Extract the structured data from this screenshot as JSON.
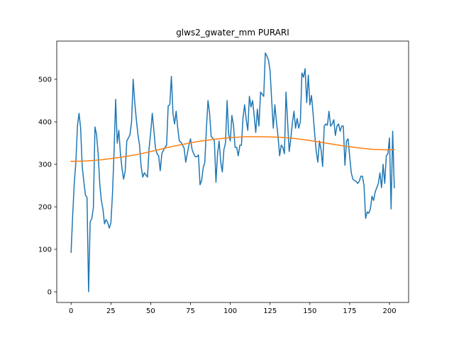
{
  "chart_data": {
    "type": "line",
    "title": "glws2_gwater_mm PURARI",
    "xlabel": "",
    "ylabel": "",
    "xlim": [
      -9,
      212
    ],
    "ylim": [
      -25,
      590
    ],
    "xticks": [
      0,
      25,
      50,
      75,
      100,
      125,
      150,
      175,
      200
    ],
    "yticks": [
      0,
      100,
      200,
      300,
      400,
      500
    ],
    "grid": false,
    "series": [
      {
        "color": "#1f77b4",
        "x": [
          0,
          1,
          2,
          3,
          4,
          5,
          6,
          7,
          8,
          9,
          10,
          11,
          12,
          13,
          14,
          15,
          16,
          17,
          18,
          19,
          20,
          21,
          22,
          23,
          24,
          25,
          26,
          27,
          28,
          29,
          30,
          31,
          32,
          33,
          34,
          35,
          36,
          37,
          38,
          39,
          40,
          41,
          42,
          43,
          44,
          45,
          46,
          47,
          48,
          49,
          50,
          51,
          52,
          53,
          54,
          55,
          56,
          57,
          58,
          59,
          60,
          61,
          62,
          63,
          64,
          65,
          66,
          67,
          68,
          69,
          70,
          71,
          72,
          73,
          74,
          75,
          76,
          77,
          78,
          79,
          80,
          81,
          82,
          83,
          84,
          85,
          86,
          87,
          88,
          89,
          90,
          91,
          92,
          93,
          94,
          95,
          96,
          97,
          98,
          99,
          100,
          101,
          102,
          103,
          104,
          105,
          106,
          107,
          108,
          109,
          110,
          111,
          112,
          113,
          114,
          115,
          116,
          117,
          118,
          119,
          120,
          121,
          122,
          123,
          124,
          125,
          126,
          127,
          128,
          129,
          130,
          131,
          132,
          133,
          134,
          135,
          136,
          137,
          138,
          139,
          140,
          141,
          142,
          143,
          144,
          145,
          146,
          147,
          148,
          149,
          150,
          151,
          152,
          153,
          154,
          155,
          156,
          157,
          158,
          159,
          160,
          161,
          162,
          163,
          164,
          165,
          166,
          167,
          168,
          169,
          170,
          171,
          172,
          173,
          174,
          175,
          176,
          177,
          178,
          179,
          180,
          181,
          182,
          183,
          184,
          185,
          186,
          187,
          188,
          189,
          190,
          191,
          192,
          193,
          194,
          195,
          196,
          197,
          198,
          199,
          200,
          201,
          202,
          203
        ],
        "values": [
          93,
          180,
          255,
          305,
          390,
          420,
          385,
          295,
          260,
          228,
          222,
          0,
          165,
          172,
          198,
          388,
          370,
          325,
          255,
          215,
          195,
          160,
          170,
          163,
          150,
          162,
          230,
          330,
          453,
          350,
          380,
          325,
          290,
          265,
          285,
          355,
          362,
          370,
          400,
          500,
          445,
          405,
          370,
          345,
          295,
          270,
          280,
          275,
          270,
          338,
          375,
          420,
          380,
          338,
          325,
          320,
          285,
          325,
          333,
          340,
          345,
          438,
          440,
          507,
          420,
          395,
          425,
          385,
          355,
          352,
          345,
          338,
          305,
          325,
          345,
          360,
          335,
          325,
          318,
          318,
          322,
          252,
          262,
          292,
          305,
          385,
          450,
          420,
          365,
          362,
          355,
          258,
          325,
          355,
          305,
          282,
          335,
          350,
          450,
          370,
          355,
          415,
          392,
          340,
          340,
          320,
          345,
          345,
          410,
          440,
          405,
          380,
          460,
          435,
          450,
          415,
          375,
          430,
          390,
          470,
          465,
          460,
          562,
          555,
          545,
          520,
          450,
          385,
          440,
          400,
          365,
          320,
          345,
          340,
          325,
          470,
          400,
          330,
          360,
          398,
          425,
          385,
          408,
          385,
          400,
          515,
          505,
          525,
          445,
          510,
          440,
          462,
          420,
          372,
          330,
          305,
          355,
          335,
          295,
          390,
          395,
          392,
          425,
          390,
          395,
          405,
          368,
          390,
          395,
          378,
          390,
          390,
          298,
          355,
          360,
          318,
          280,
          265,
          262,
          260,
          255,
          260,
          272,
          272,
          250,
          173,
          188,
          185,
          195,
          225,
          215,
          235,
          245,
          255,
          280,
          245,
          300,
          255,
          320,
          325,
          362,
          195,
          378,
          245
        ]
      },
      {
        "color": "#ff7f0e",
        "x": [
          0,
          10,
          20,
          30,
          40,
          50,
          60,
          70,
          80,
          90,
          100,
          110,
          120,
          130,
          140,
          150,
          160,
          170,
          180,
          190,
          200,
          203
        ],
        "values": [
          307,
          308,
          311,
          316,
          322,
          330,
          339,
          347,
          354,
          359,
          363,
          365,
          365,
          364,
          361,
          356,
          350,
          344,
          339,
          335,
          334,
          335
        ]
      }
    ]
  }
}
